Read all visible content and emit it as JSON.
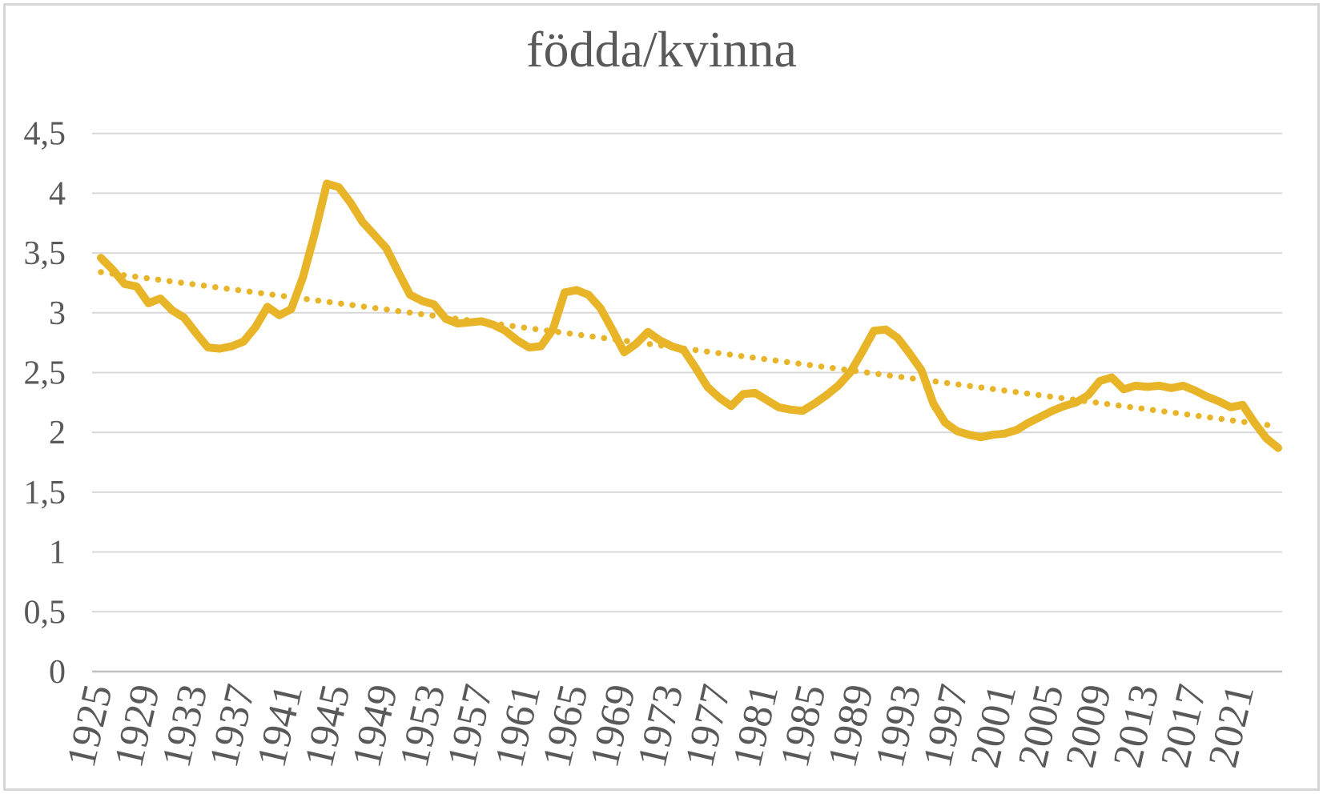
{
  "colors": {
    "line": "#E8B428",
    "trend": "#E8B428",
    "grid": "#D9D9D9",
    "axis": "#BFBFBF",
    "text": "#595959",
    "frame": "#D6D6D6",
    "background": "#FFFFFF"
  },
  "chart_data": {
    "type": "line",
    "title": "födda/kvinna",
    "xlabel": "",
    "ylabel": "",
    "ylim": [
      0,
      4.5
    ],
    "grid": true,
    "legend_position": "none",
    "year_start": 1925,
    "year_end": 2024,
    "series": [
      {
        "name": "födda/kvinna",
        "style": "solid",
        "values": [
          3.46,
          3.36,
          3.24,
          3.22,
          3.08,
          3.12,
          3.02,
          2.96,
          2.83,
          2.71,
          2.7,
          2.72,
          2.76,
          2.88,
          3.05,
          2.98,
          3.03,
          3.3,
          3.67,
          4.08,
          4.05,
          3.92,
          3.76,
          3.65,
          3.54,
          3.34,
          3.15,
          3.1,
          3.07,
          2.95,
          2.91,
          2.92,
          2.93,
          2.9,
          2.85,
          2.77,
          2.71,
          2.72,
          2.86,
          3.17,
          3.19,
          3.15,
          3.04,
          2.86,
          2.67,
          2.74,
          2.84,
          2.77,
          2.72,
          2.69,
          2.54,
          2.38,
          2.29,
          2.22,
          2.32,
          2.33,
          2.27,
          2.21,
          2.19,
          2.18,
          2.24,
          2.31,
          2.39,
          2.5,
          2.67,
          2.85,
          2.86,
          2.79,
          2.66,
          2.52,
          2.24,
          2.08,
          2.01,
          1.98,
          1.96,
          1.98,
          1.99,
          2.02,
          2.08,
          2.13,
          2.18,
          2.22,
          2.25,
          2.31,
          2.43,
          2.46,
          2.36,
          2.39,
          2.38,
          2.39,
          2.37,
          2.39,
          2.35,
          2.3,
          2.26,
          2.21,
          2.23,
          2.08,
          1.95,
          1.87
        ]
      }
    ],
    "trend": {
      "name": "linjär trendlinje",
      "style": "dotted",
      "start_year": 1925,
      "start_value": 3.34,
      "end_year": 2024,
      "end_value": 2.05
    },
    "yticks": [
      {
        "label": "4,5",
        "value": 4.5
      },
      {
        "label": "4",
        "value": 4.0
      },
      {
        "label": "3,5",
        "value": 3.5
      },
      {
        "label": "3",
        "value": 3.0
      },
      {
        "label": "2,5",
        "value": 2.5
      },
      {
        "label": "2",
        "value": 2.0
      },
      {
        "label": "1,5",
        "value": 1.5
      },
      {
        "label": "1",
        "value": 1.0
      },
      {
        "label": "0,5",
        "value": 0.5
      },
      {
        "label": "0",
        "value": 0.0
      }
    ],
    "xticks": [
      {
        "label": "1925",
        "year": 1925
      },
      {
        "label": "1929",
        "year": 1929
      },
      {
        "label": "1933",
        "year": 1933
      },
      {
        "label": "1937",
        "year": 1937
      },
      {
        "label": "1941",
        "year": 1941
      },
      {
        "label": "1945",
        "year": 1945
      },
      {
        "label": "1949",
        "year": 1949
      },
      {
        "label": "1953",
        "year": 1953
      },
      {
        "label": "1957",
        "year": 1957
      },
      {
        "label": "1961",
        "year": 1961
      },
      {
        "label": "1965",
        "year": 1965
      },
      {
        "label": "1969",
        "year": 1969
      },
      {
        "label": "1973",
        "year": 1973
      },
      {
        "label": "1977",
        "year": 1977
      },
      {
        "label": "1981",
        "year": 1981
      },
      {
        "label": "1985",
        "year": 1985
      },
      {
        "label": "1989",
        "year": 1989
      },
      {
        "label": "1993",
        "year": 1993
      },
      {
        "label": "1997",
        "year": 1997
      },
      {
        "label": "2001",
        "year": 2001
      },
      {
        "label": "2005",
        "year": 2005
      },
      {
        "label": "2009",
        "year": 2009
      },
      {
        "label": "2013",
        "year": 2013
      },
      {
        "label": "2017",
        "year": 2017
      },
      {
        "label": "2021",
        "year": 2021
      }
    ]
  }
}
